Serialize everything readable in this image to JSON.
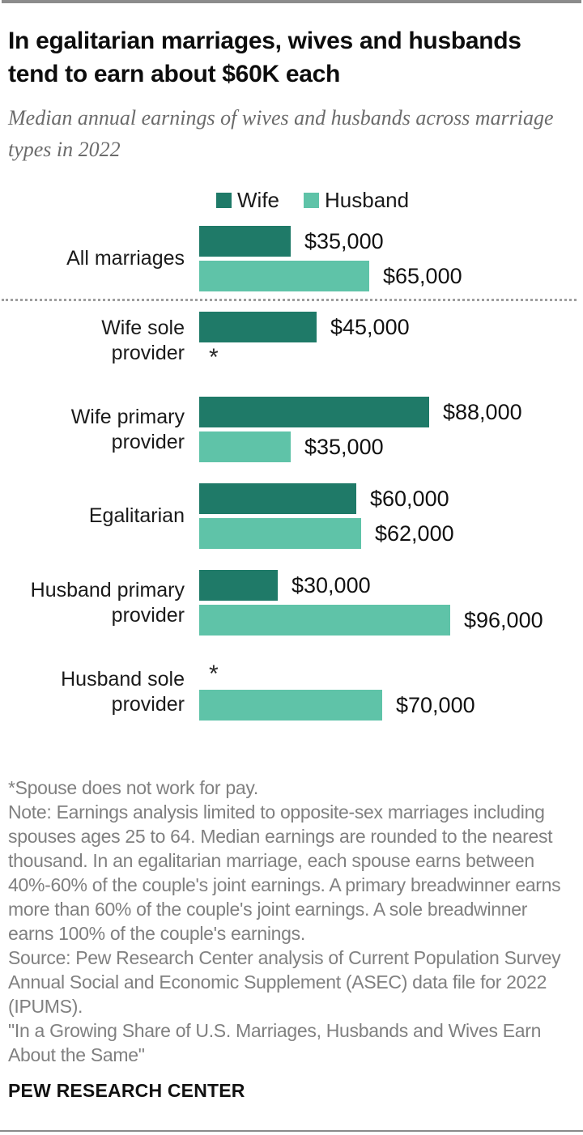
{
  "header": {
    "title": "In egalitarian marriages, wives and husbands tend to earn about $60K each",
    "subtitle": "Median annual earnings of wives and husbands across marriage types in 2022"
  },
  "legend": [
    {
      "label": "Wife",
      "color": "#1f7a68"
    },
    {
      "label": "Husband",
      "color": "#5fc3a8"
    }
  ],
  "chart_data": {
    "type": "bar",
    "orientation": "horizontal",
    "title": "Median annual earnings of wives and husbands across marriage types in 2022",
    "unit": "USD",
    "categories": [
      "All marriages",
      "Wife sole provider",
      "Wife primary provider",
      "Egalitarian",
      "Husband primary provider",
      "Husband sole provider"
    ],
    "category_display": [
      "All marriages",
      "Wife sole\nprovider",
      "Wife primary\nprovider",
      "Egalitarian",
      "Husband primary\nprovider",
      "Husband sole\nprovider"
    ],
    "series": [
      {
        "name": "Wife",
        "color": "#1f7a68",
        "values": [
          35000,
          45000,
          88000,
          60000,
          30000,
          null
        ]
      },
      {
        "name": "Husband",
        "color": "#5fc3a8",
        "values": [
          65000,
          null,
          35000,
          62000,
          96000,
          70000
        ]
      }
    ],
    "value_labels": [
      [
        "$35,000",
        "$65,000"
      ],
      [
        "$45,000",
        "*"
      ],
      [
        "$88,000",
        "$35,000"
      ],
      [
        "$60,000",
        "$62,000"
      ],
      [
        "$30,000",
        "$96,000"
      ],
      [
        "*",
        "$70,000"
      ]
    ],
    "null_marker": "*",
    "xlim": [
      0,
      100000
    ],
    "grid": false,
    "axis_visible": false,
    "legend_position": "top",
    "divider_after_category": "All marriages"
  },
  "footnotes": {
    "asterisk_note": "*Spouse does not work for pay.",
    "note": "Note: Earnings analysis limited to opposite-sex marriages including spouses ages 25 to 64. Median earnings are rounded to the nearest thousand. In an egalitarian marriage, each spouse earns between 40%-60% of the couple's joint earnings. A primary breadwinner earns more than 60% of the couple's joint earnings. A sole breadwinner earns 100% of the couple's earnings.",
    "source": "Source: Pew Research Center analysis of Current Population Survey Annual Social and Economic Supplement (ASEC) data file for 2022 (IPUMS).",
    "report_title": "\"In a Growing Share of U.S. Marriages, Husbands and Wives Earn About the Same\""
  },
  "branding": {
    "name": "PEW RESEARCH CENTER"
  }
}
